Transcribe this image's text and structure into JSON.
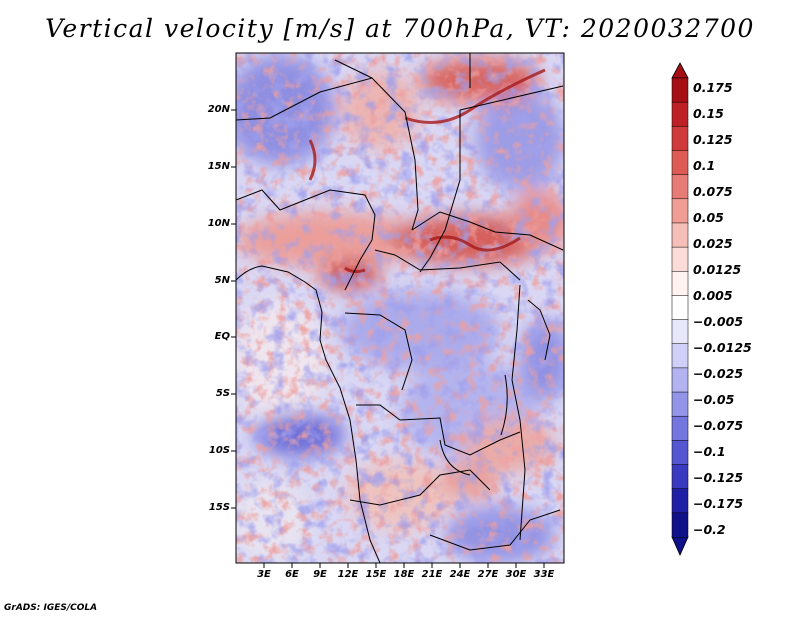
{
  "title": "Vertical velocity [m/s] at 700hPa, VT: 2020032700",
  "credit": "GrADS: IGES/COLA",
  "map": {
    "region": "Central Africa",
    "lat_range": [
      -20,
      25
    ],
    "lon_range": [
      0,
      35
    ],
    "lat_labels": [
      "20N",
      "15N",
      "10N",
      "5N",
      "EQ",
      "5S",
      "10S",
      "15S"
    ],
    "lon_labels": [
      "3E",
      "6E",
      "9E",
      "12E",
      "15E",
      "18E",
      "21E",
      "24E",
      "27E",
      "30E",
      "33E"
    ]
  },
  "colorbar": {
    "labels": [
      "0.175",
      "0.15",
      "0.125",
      "0.1",
      "0.075",
      "0.05",
      "0.025",
      "0.0125",
      "0.005",
      "−0.005",
      "−0.0125",
      "−0.025",
      "−0.05",
      "−0.075",
      "−0.1",
      "−0.125",
      "−0.175",
      "−0.2"
    ],
    "colors": [
      "#a50e14",
      "#bd2125",
      "#cf3a3a",
      "#dd5a55",
      "#e77c76",
      "#f09d96",
      "#f6beb8",
      "#fbdcd8",
      "#fff2f0",
      "#ffffff",
      "#e8e8fb",
      "#cfcff7",
      "#b3b3f1",
      "#9494e8",
      "#7575df",
      "#5656d2",
      "#3a3ac0",
      "#1f1fa6",
      "#101088"
    ]
  }
}
